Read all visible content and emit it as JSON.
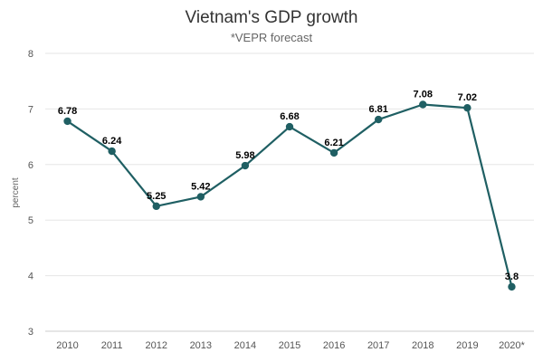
{
  "chart_data": {
    "type": "line",
    "title": "Vietnam's GDP growth",
    "subtitle": "*VEPR forecast",
    "ylabel": "percent",
    "xlabel": "",
    "categories": [
      "2010",
      "2011",
      "2012",
      "2013",
      "2014",
      "2015",
      "2016",
      "2017",
      "2018",
      "2019",
      "2020*"
    ],
    "series": [
      {
        "values": [
          6.78,
          6.24,
          5.25,
          5.42,
          5.98,
          6.68,
          6.21,
          6.81,
          7.08,
          7.02,
          3.8
        ],
        "labels": [
          "6.78",
          "6.24",
          "5.25",
          "5.42",
          "5.98",
          "6.68",
          "6.21",
          "6.81",
          "7.08",
          "7.02",
          "3.8"
        ],
        "color": "#1f5f63"
      }
    ],
    "ylim": [
      3,
      8
    ],
    "yticks": [
      "3",
      "4",
      "5",
      "6",
      "7",
      "8"
    ],
    "grid": true,
    "legend": "none"
  }
}
